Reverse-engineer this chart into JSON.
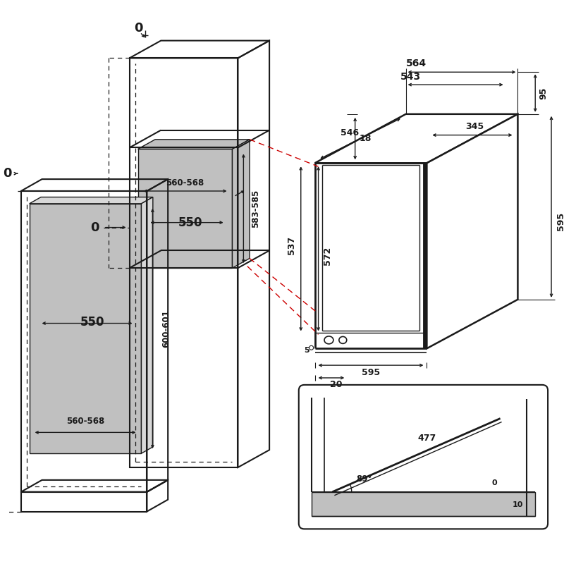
{
  "bg_color": "#ffffff",
  "line_color": "#1a1a1a",
  "gray_fill": "#c0c0c0",
  "gray_light": "#d8d8d8",
  "red_dash": "#cc0000",
  "dims": {
    "d0a": "0",
    "d0b": "0",
    "d0c": "0",
    "upper_w": "560-568",
    "upper_h": "583-585",
    "upper_d": "550",
    "lower_w": "560-568",
    "lower_h": "600-601",
    "lower_d": "550",
    "d564": "564",
    "d543": "543",
    "d546": "546",
    "d345": "345",
    "d18": "18",
    "d537": "537",
    "d572": "572",
    "d95": "95",
    "d595h": "595",
    "d595v": "595",
    "d5": "5",
    "d20": "20",
    "d477": "477",
    "d89": "89°",
    "d0s": "0",
    "d10": "10"
  }
}
